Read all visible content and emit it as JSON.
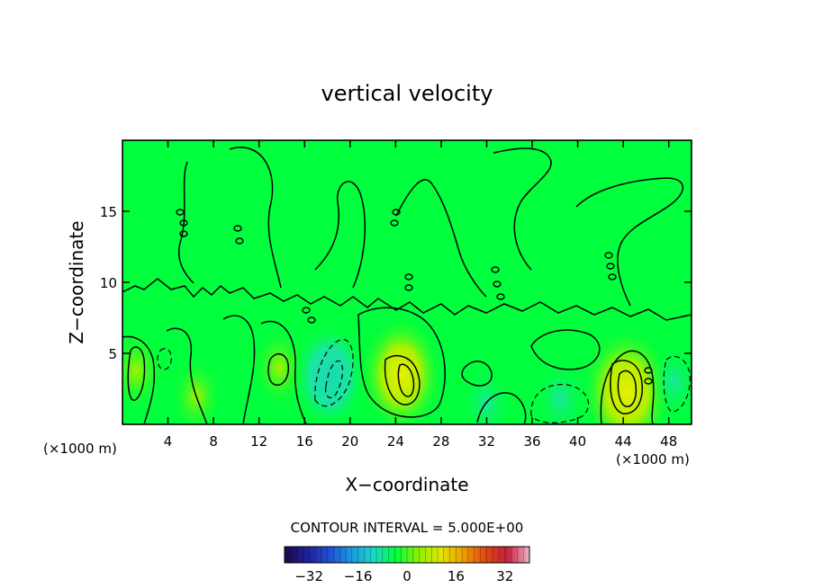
{
  "chart_data": {
    "type": "heatmap",
    "title": "vertical velocity",
    "xlabel": "X−coordinate",
    "ylabel": "Z−coordinate",
    "x_unit_left": "(×1000 m)",
    "x_unit_right": "(×1000 m)",
    "xlim": [
      0,
      50
    ],
    "ylim": [
      0,
      20
    ],
    "x_ticks": [
      4,
      8,
      12,
      16,
      20,
      24,
      28,
      32,
      36,
      40,
      44,
      48
    ],
    "y_ticks": [
      5,
      10,
      15
    ],
    "grid": false,
    "contour_interval_text": "CONTOUR INTERVAL = 5.000E+00",
    "contour_interval": 5.0,
    "colorbar": {
      "range": [
        -40,
        40
      ],
      "ticks": [
        -32,
        -16,
        0,
        16,
        32
      ],
      "tick_labels": [
        "−32",
        "−16",
        "0",
        "16",
        "32"
      ],
      "colors": [
        "#1a0a4a",
        "#1f1f9a",
        "#1f4fd0",
        "#1a9ae0",
        "#1ad8c8",
        "#00ff3c",
        "#8cf000",
        "#e0e600",
        "#f0a000",
        "#e04a10",
        "#c81e3c",
        "#f0b4c8"
      ]
    },
    "features": [
      {
        "kind": "updraft",
        "x": 24.5,
        "z": 3.5,
        "peak": 20
      },
      {
        "kind": "updraft",
        "x": 44.3,
        "z": 2.3,
        "peak": 24
      },
      {
        "kind": "updraft",
        "x": 13.8,
        "z": 4.0,
        "peak": 8
      },
      {
        "kind": "updraft",
        "x": 1.2,
        "z": 3.8,
        "peak": 8
      },
      {
        "kind": "updraft",
        "x": 6.5,
        "z": 2.0,
        "peak": 6
      },
      {
        "kind": "downdraft",
        "x": 18.2,
        "z": 3.4,
        "peak": -15
      },
      {
        "kind": "downdraft",
        "x": 38.5,
        "z": 1.8,
        "peak": -7
      },
      {
        "kind": "downdraft",
        "x": 32.0,
        "z": 1.5,
        "peak": -5
      },
      {
        "kind": "downdraft",
        "x": 48.5,
        "z": 3.0,
        "peak": -5
      }
    ]
  }
}
